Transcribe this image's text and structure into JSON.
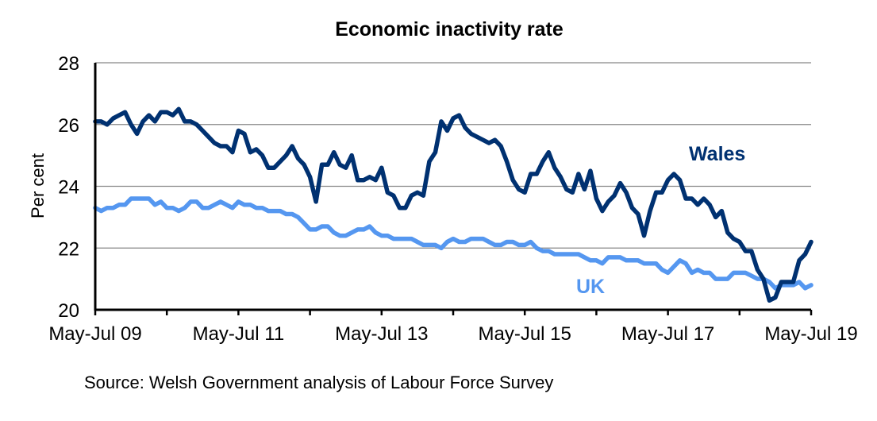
{
  "chart_data": {
    "type": "line",
    "title": "Economic inactivity rate",
    "xlabel": "",
    "ylabel": "Per cent",
    "ylim": [
      20,
      28
    ],
    "yticks": [
      20,
      22,
      24,
      26,
      28
    ],
    "xtick_labels": [
      "May-Jul 09",
      "May-Jul 11",
      "May-Jul 13",
      "May-Jul 15",
      "May-Jul 17",
      "May-Jul 19"
    ],
    "x_period": "rolling three-month periods, monthly, May-Jul 2009 to May-Jul 2019",
    "grid": "horizontal",
    "legend": "inline labels",
    "series": [
      {
        "name": "Wales",
        "color": "#003171",
        "label_position": "right, above line",
        "values": [
          26.1,
          26.1,
          26.0,
          26.2,
          26.3,
          26.4,
          26.0,
          25.7,
          26.1,
          26.3,
          26.1,
          26.4,
          26.4,
          26.3,
          26.5,
          26.1,
          26.1,
          26.0,
          25.8,
          25.6,
          25.4,
          25.3,
          25.3,
          25.1,
          25.8,
          25.7,
          25.1,
          25.2,
          25.0,
          24.6,
          24.6,
          24.8,
          25.0,
          25.3,
          24.9,
          24.7,
          24.3,
          23.5,
          24.7,
          24.7,
          25.1,
          24.7,
          24.6,
          25.0,
          24.2,
          24.2,
          24.3,
          24.2,
          24.6,
          23.8,
          23.7,
          23.3,
          23.3,
          23.7,
          23.8,
          23.7,
          24.8,
          25.1,
          26.1,
          25.8,
          26.2,
          26.3,
          25.9,
          25.7,
          25.6,
          25.5,
          25.4,
          25.5,
          25.3,
          24.8,
          24.2,
          23.9,
          23.8,
          24.4,
          24.4,
          24.8,
          25.1,
          24.6,
          24.3,
          23.9,
          23.8,
          24.4,
          23.9,
          24.5,
          23.6,
          23.2,
          23.5,
          23.7,
          24.1,
          23.8,
          23.3,
          23.1,
          22.4,
          23.2,
          23.8,
          23.8,
          24.2,
          24.4,
          24.2,
          23.6,
          23.6,
          23.4,
          23.6,
          23.4,
          23.0,
          23.2,
          22.5,
          22.3,
          22.2,
          21.9,
          21.9,
          21.3,
          21.0,
          20.3,
          20.4,
          20.9,
          20.9,
          20.9,
          21.6,
          21.8,
          22.2
        ]
      },
      {
        "name": "UK",
        "color": "#5597f0",
        "label_position": "lower middle-right, below line",
        "values": [
          23.3,
          23.2,
          23.3,
          23.3,
          23.4,
          23.4,
          23.6,
          23.6,
          23.6,
          23.6,
          23.4,
          23.5,
          23.3,
          23.3,
          23.2,
          23.3,
          23.5,
          23.5,
          23.3,
          23.3,
          23.4,
          23.5,
          23.4,
          23.3,
          23.5,
          23.4,
          23.4,
          23.3,
          23.3,
          23.2,
          23.2,
          23.2,
          23.1,
          23.1,
          23.0,
          22.8,
          22.6,
          22.6,
          22.7,
          22.7,
          22.5,
          22.4,
          22.4,
          22.5,
          22.6,
          22.6,
          22.7,
          22.5,
          22.4,
          22.4,
          22.3,
          22.3,
          22.3,
          22.3,
          22.2,
          22.1,
          22.1,
          22.1,
          22.0,
          22.2,
          22.3,
          22.2,
          22.2,
          22.3,
          22.3,
          22.3,
          22.2,
          22.1,
          22.1,
          22.2,
          22.2,
          22.1,
          22.1,
          22.2,
          22.0,
          21.9,
          21.9,
          21.8,
          21.8,
          21.8,
          21.8,
          21.8,
          21.7,
          21.6,
          21.6,
          21.5,
          21.7,
          21.7,
          21.7,
          21.6,
          21.6,
          21.6,
          21.5,
          21.5,
          21.5,
          21.3,
          21.2,
          21.4,
          21.6,
          21.5,
          21.2,
          21.3,
          21.2,
          21.2,
          21.0,
          21.0,
          21.0,
          21.2,
          21.2,
          21.2,
          21.1,
          21.0,
          21.0,
          20.9,
          20.7,
          20.8,
          20.8,
          20.8,
          20.9,
          20.7,
          20.8
        ]
      }
    ]
  },
  "source_note": "Source: Welsh Government analysis of Labour Force Survey"
}
